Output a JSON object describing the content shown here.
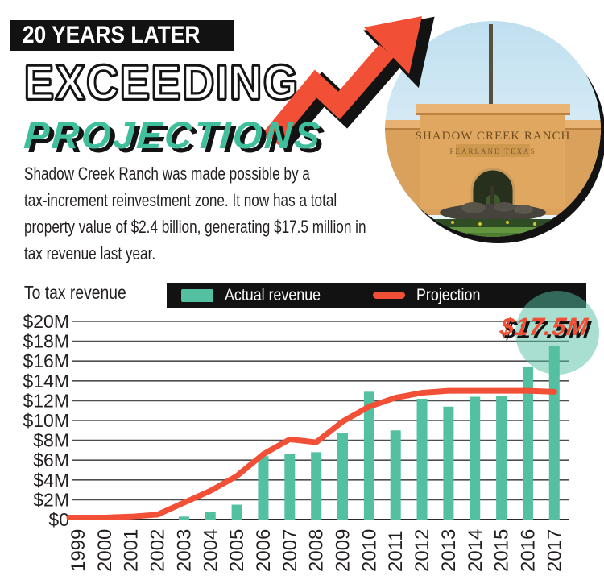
{
  "header": {
    "banner": "20 YEARS LATER",
    "title_line1": "EXCEEDING",
    "title_line2": "PROJECTIONS"
  },
  "photo": {
    "sign_line1": "SHADOW CREEK RANCH",
    "sign_line2": "PEARLAND TEXAS"
  },
  "intro": {
    "lines": [
      "Shadow Creek Ranch was made possible by a",
      "tax-increment reinvestment zone. It now has a total",
      "property value of $2.4 billion, generating $17.5 million in",
      "tax revenue last year."
    ]
  },
  "chart_header": {
    "axis_label": "To tax revenue",
    "legend_actual": "Actual revenue",
    "legend_projection": "Projection"
  },
  "callout": {
    "text": "$17.5M"
  },
  "colors": {
    "teal": "#52c0a1",
    "teal_title": "#3fbf9c",
    "red": "#f14f36",
    "black": "#131313",
    "highlight_circle": "rgba(82,192,161,0.5)",
    "gridline": "#4f4f4f"
  },
  "chart_data": {
    "type": "bar",
    "title": "To tax revenue",
    "categories": [
      "1999",
      "2000",
      "2001",
      "2002",
      "2003",
      "2004",
      "2005",
      "2006",
      "2007",
      "2008",
      "2009",
      "2010",
      "2011",
      "2012",
      "2013",
      "2014",
      "2015",
      "2016",
      "2017"
    ],
    "series": [
      {
        "name": "Actual revenue",
        "type": "bar",
        "color": "#52c0a1",
        "values": [
          0,
          0,
          0,
          0,
          0.3,
          0.8,
          1.5,
          6.4,
          6.6,
          6.8,
          8.7,
          12.9,
          9.0,
          12.2,
          11.4,
          12.4,
          12.5,
          15.4,
          17.5
        ]
      },
      {
        "name": "Projection",
        "type": "line",
        "color": "#f14f36",
        "values": [
          0.2,
          0.2,
          0.3,
          0.5,
          1.7,
          2.9,
          4.4,
          6.6,
          8.1,
          7.8,
          9.9,
          11.4,
          12.3,
          12.8,
          13.0,
          13.0,
          13.0,
          13.0,
          12.9
        ]
      }
    ],
    "ytick_labels": [
      "$20M",
      "$18M",
      "$16M",
      "$14M",
      "$12M",
      "$10M",
      "$8M",
      "$6M",
      "$4M",
      "$2M",
      "$0"
    ],
    "ytick_values": [
      20,
      18,
      16,
      14,
      12,
      10,
      8,
      6,
      4,
      2,
      0
    ],
    "ylim": [
      0,
      20
    ],
    "grid": true,
    "legend_position": "top",
    "annotation": {
      "text": "$17.5M",
      "target_year": "2017"
    }
  }
}
